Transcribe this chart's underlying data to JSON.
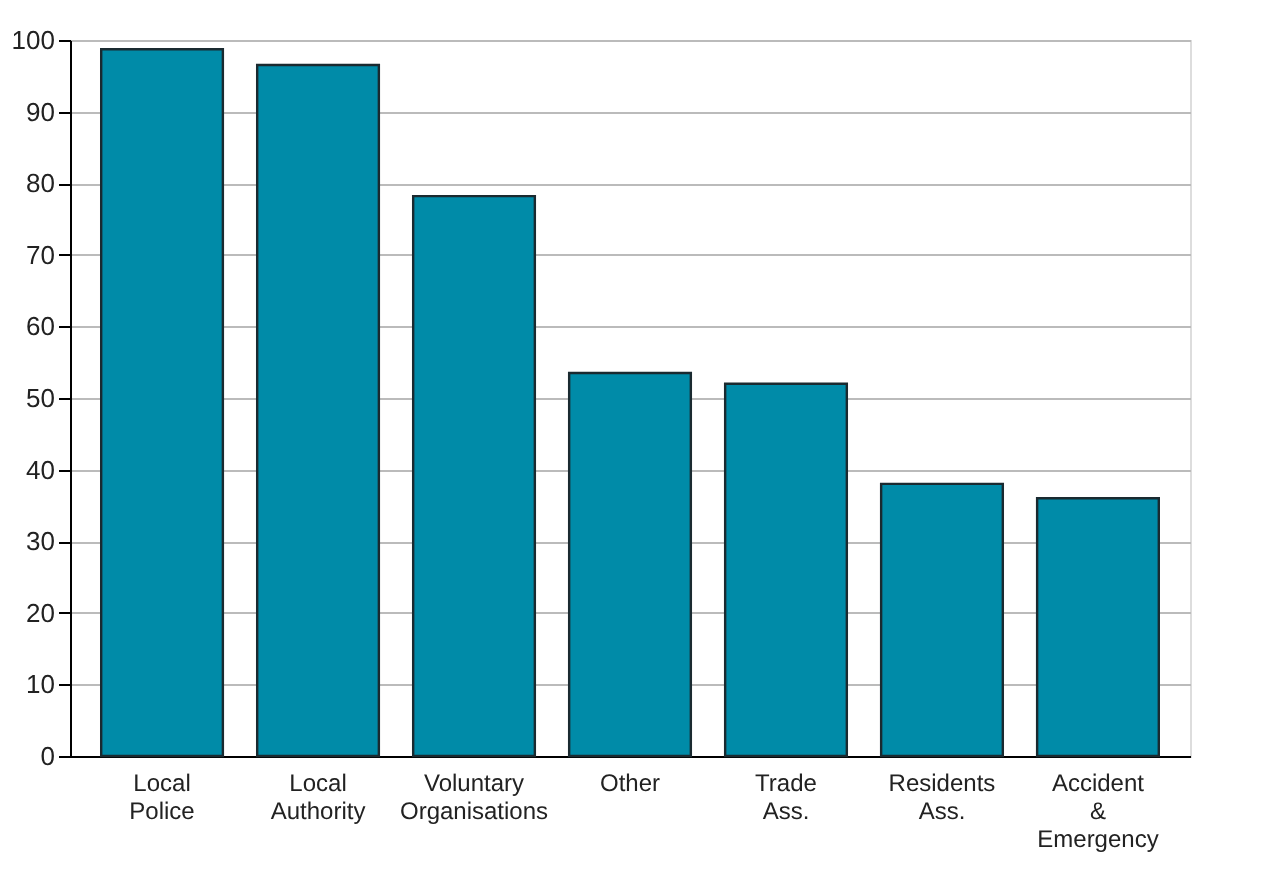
{
  "chart_data": {
    "type": "bar",
    "categories": [
      "Local Police",
      "Local Authority",
      "Voluntary Organisations",
      "Other",
      "Trade Ass.",
      "Residents Ass.",
      "Accident & Emergency"
    ],
    "values": [
      98.7,
      96.5,
      78.2,
      53.5,
      52,
      38,
      36
    ],
    "color": "#008ba8",
    "ylim": [
      0,
      100
    ],
    "yticks": [
      0,
      10,
      20,
      30,
      40,
      50,
      60,
      70,
      80,
      90,
      100
    ],
    "grid": "y"
  }
}
